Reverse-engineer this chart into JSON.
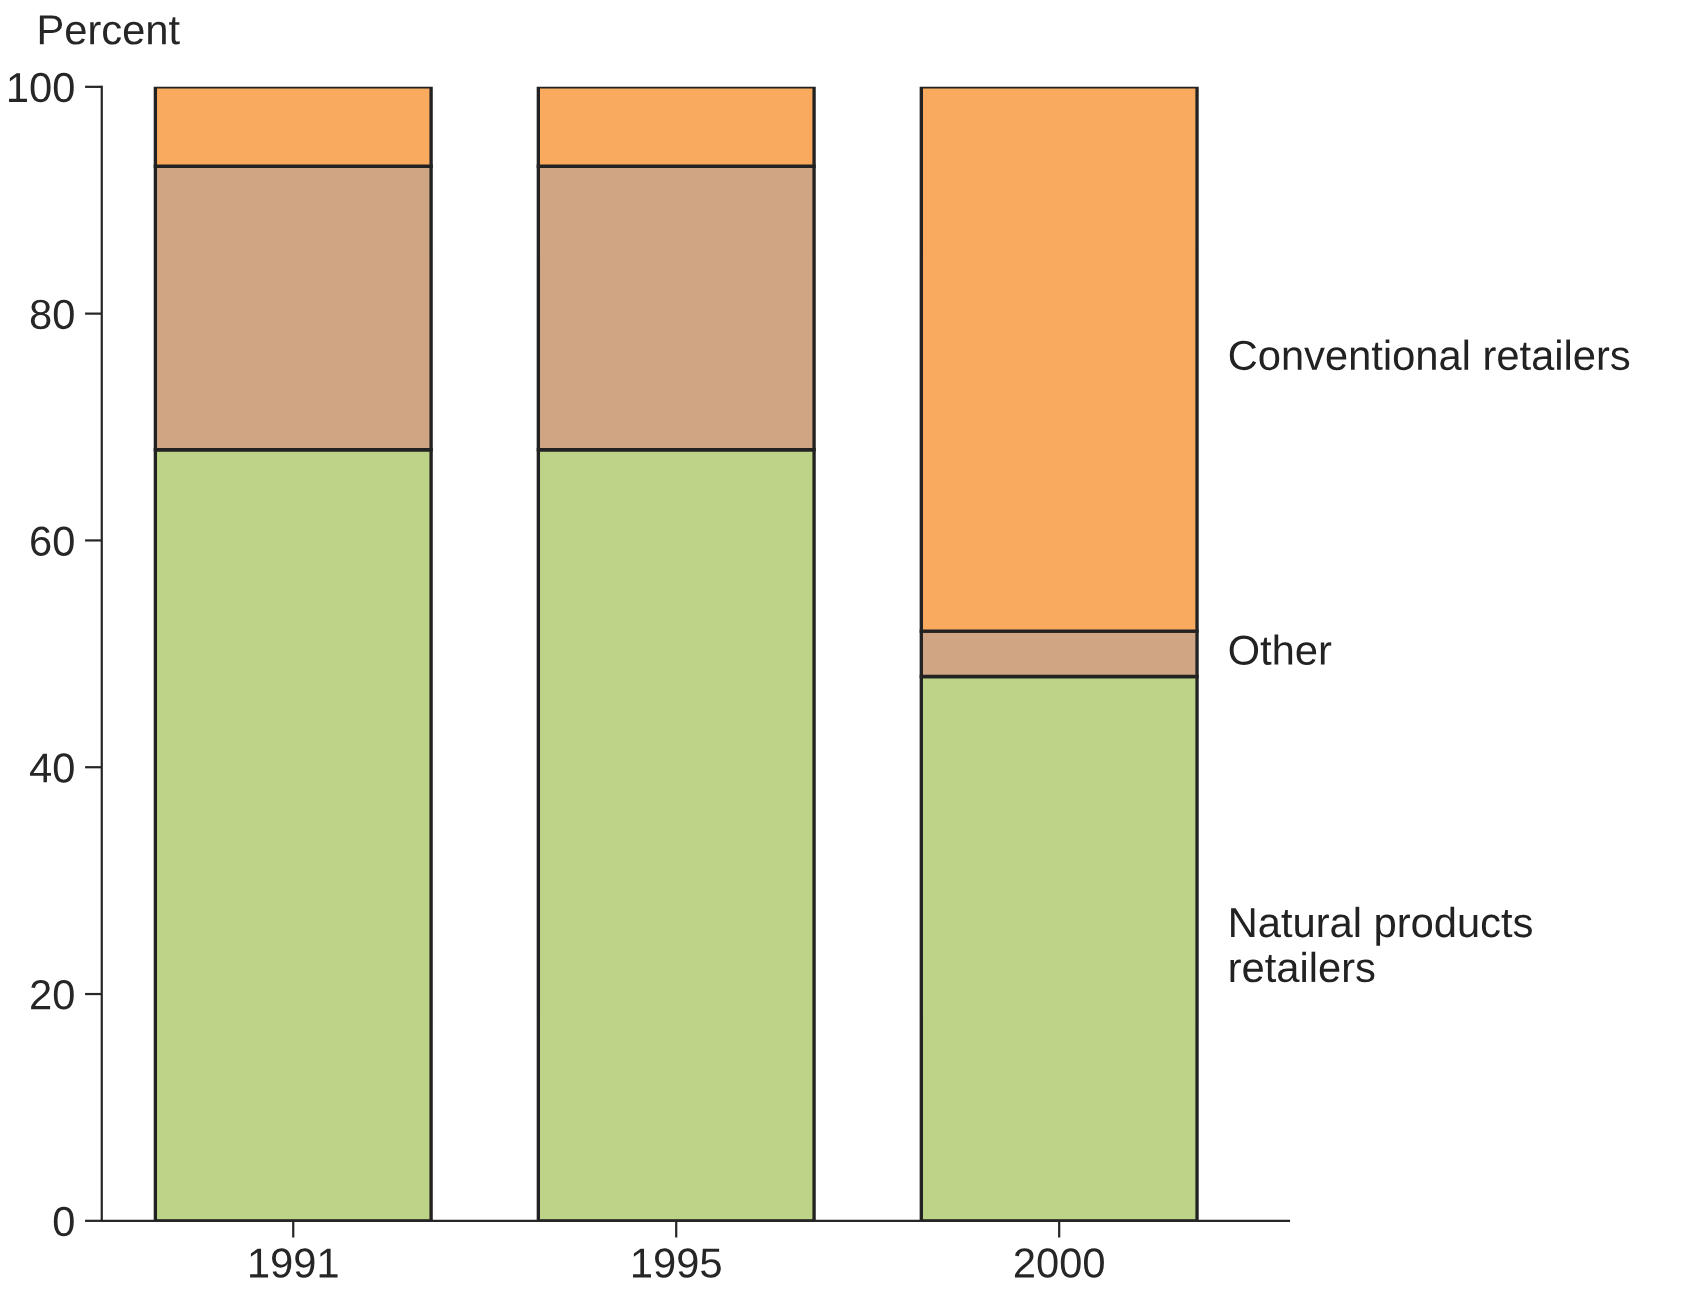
{
  "chart_data": {
    "type": "bar",
    "stacked": true,
    "ylabel": "Percent",
    "categories": [
      "1991",
      "1995",
      "2000"
    ],
    "series": [
      {
        "name": "Natural products\nretailers",
        "color": "#bdd387",
        "values": [
          68,
          68,
          48
        ]
      },
      {
        "name": "Other",
        "color": "#cfa584",
        "values": [
          25,
          25,
          4
        ]
      },
      {
        "name": "Conventional retailers",
        "color": "#f9aa5e",
        "values": [
          7,
          7,
          48
        ]
      }
    ],
    "ylim": [
      0,
      100
    ],
    "yticks": [
      0,
      20,
      40,
      60,
      80,
      100
    ],
    "grid": false,
    "legend": false
  }
}
